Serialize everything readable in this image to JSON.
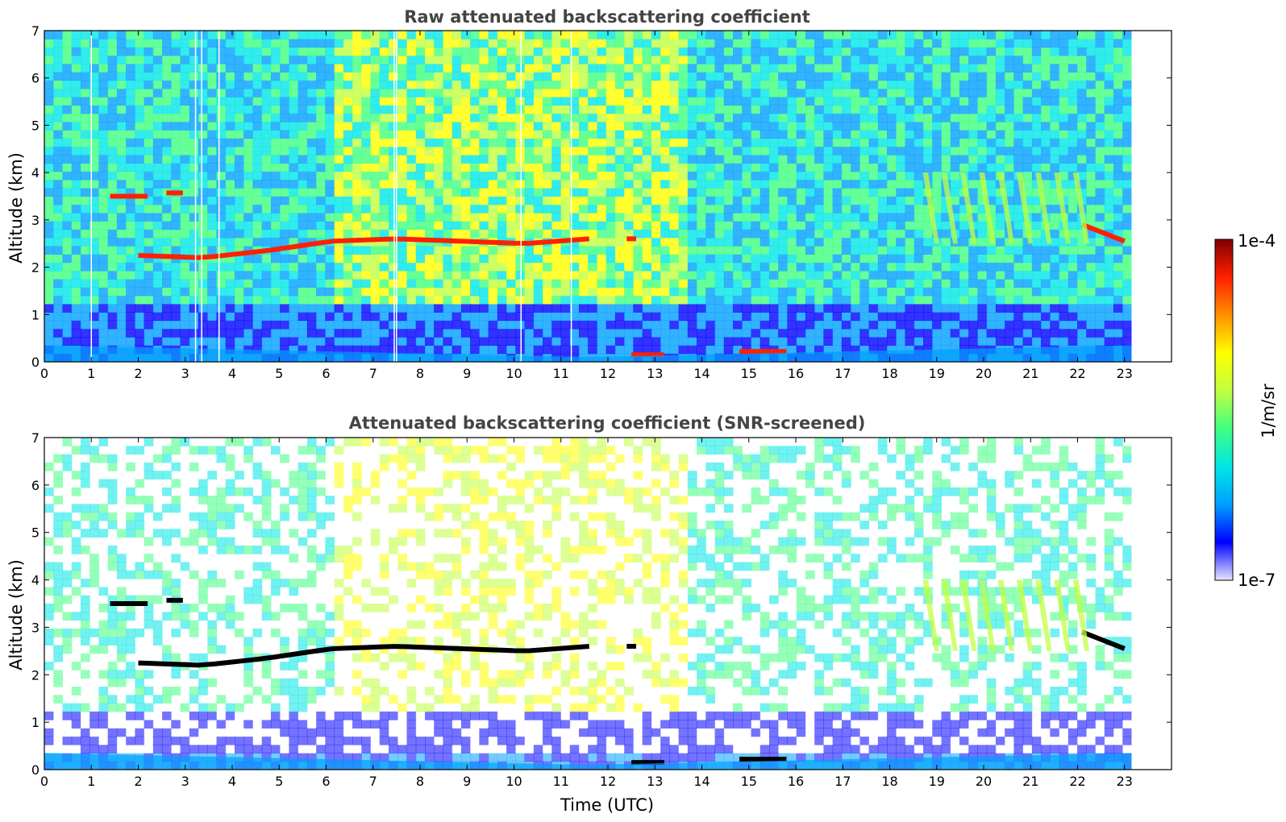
{
  "chart_data": [
    {
      "type": "heatmap",
      "title": "Raw attenuated backscattering coefficient",
      "xlabel": "",
      "ylabel": "Altitude (km)",
      "xlim": [
        0,
        24
      ],
      "ylim": [
        0,
        7
      ],
      "x_ticks": [
        "0",
        "1",
        "2",
        "3",
        "4",
        "5",
        "6",
        "7",
        "8",
        "9",
        "10",
        "11",
        "12",
        "13",
        "14",
        "15",
        "16",
        "17",
        "18",
        "19",
        "20",
        "21",
        "22",
        "23"
      ],
      "y_ticks": [
        "0",
        "1",
        "2",
        "3",
        "4",
        "5",
        "6",
        "7"
      ],
      "data_end_time": 23.15,
      "data_gaps_time": [
        1.0,
        3.22,
        3.35,
        3.72,
        7.45,
        7.5,
        10.15,
        11.22
      ],
      "features": [
        {
          "kind": "cloud_layer",
          "t_start": 1.4,
          "t_end": 2.2,
          "alt_km": 3.5
        },
        {
          "kind": "cloud_layer",
          "t_start": 2.6,
          "t_end": 2.95,
          "alt_km": 3.57
        },
        {
          "kind": "cloud_layer",
          "t_start": 2.0,
          "t_end": 11.6,
          "alt_km": [
            2.25,
            2.2,
            2.35,
            2.55,
            2.6,
            2.55,
            2.5,
            2.6
          ]
        },
        {
          "kind": "cloud_layer",
          "t_start": 12.4,
          "t_end": 12.6,
          "alt_km": 2.6
        },
        {
          "kind": "cloud_layer",
          "t_start": 22.1,
          "t_end": 23.0,
          "alt_km": [
            2.9,
            2.55
          ]
        },
        {
          "kind": "low_cloud",
          "t_start": 12.5,
          "t_end": 13.2,
          "alt_km": 0.15
        },
        {
          "kind": "low_cloud",
          "t_start": 14.8,
          "t_end": 15.8,
          "alt_km": 0.22
        },
        {
          "kind": "virga",
          "t_start": 18.7,
          "t_end": 21.9,
          "alt_km": [
            2.5,
            4.0
          ]
        },
        {
          "kind": "boundary_layer",
          "t_start": 0,
          "t_end": 23.15,
          "alt_km": [
            0.35,
            0.1,
            0.35
          ]
        }
      ]
    },
    {
      "type": "heatmap",
      "title": "Attenuated backscattering coefficient (SNR-screened)",
      "xlabel": "Time (UTC)",
      "ylabel": "Altitude (km)",
      "xlim": [
        0,
        24
      ],
      "ylim": [
        0,
        7
      ],
      "x_ticks": [
        "0",
        "1",
        "2",
        "3",
        "4",
        "5",
        "6",
        "7",
        "8",
        "9",
        "10",
        "11",
        "12",
        "13",
        "14",
        "15",
        "16",
        "17",
        "18",
        "19",
        "20",
        "21",
        "22",
        "23"
      ],
      "y_ticks": [
        "0",
        "1",
        "2",
        "3",
        "4",
        "5",
        "6",
        "7"
      ],
      "data_end_time": 23.15,
      "screened": true
    }
  ],
  "colorbar": {
    "max_label": "1e-4",
    "min_label": "1e-7",
    "unit_label": "1/m/sr",
    "scale": "log",
    "colormap": [
      "#e6e6ff",
      "#0000ff",
      "#00a0ff",
      "#00e6e6",
      "#40ff80",
      "#c0ff40",
      "#ffff00",
      "#ff9000",
      "#ff2000",
      "#800000"
    ]
  }
}
